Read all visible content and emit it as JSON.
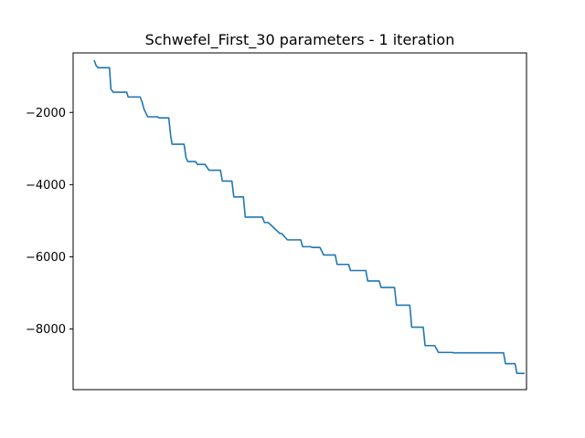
{
  "chart_data": {
    "type": "line",
    "title": "Schwefel_First_30 parameters - 1 iteration",
    "xlabel": "",
    "ylabel": "",
    "x_ticks_visible": false,
    "grid": false,
    "series_color": "#1f77b4",
    "ylim": [
      -9680,
      -350
    ],
    "yticks": [
      {
        "value": -2000,
        "label": "−2000"
      },
      {
        "value": -4000,
        "label": "−4000"
      },
      {
        "value": -6000,
        "label": "−6000"
      },
      {
        "value": -8000,
        "label": "−8000"
      }
    ],
    "xlim": [
      -2.2,
      45.2
    ],
    "series": [
      {
        "x": [
          0,
          0.2,
          0.4,
          1,
          1.6,
          1.75,
          2,
          3.4,
          3.55,
          4.8,
          5,
          5.2,
          5.6,
          6.6,
          6.8,
          7.8,
          8,
          8.15,
          9.4,
          9.6,
          9.8,
          10.6,
          10.8,
          11.6,
          12,
          13.2,
          13.4,
          14.4,
          14.6,
          15.6,
          15.8,
          17.6,
          17.8,
          18.2,
          19.4,
          19.6,
          20.2,
          21.6,
          21.8,
          22.6,
          22.8,
          23.6,
          24,
          25.2,
          25.4,
          26.6,
          26.8,
          27.2,
          27.6,
          28.4,
          28.6,
          29.8,
          30,
          31.4,
          31.6,
          33,
          33.2,
          34.4,
          34.6,
          35.6,
          36,
          37.4,
          37.6,
          38.6,
          38.8,
          42.8,
          43,
          44,
          44.2,
          45
        ],
        "y": [
          -550,
          -700,
          -760,
          -760,
          -760,
          -1350,
          -1440,
          -1440,
          -1570,
          -1570,
          -1700,
          -1900,
          -2120,
          -2120,
          -2150,
          -2150,
          -2650,
          -2880,
          -2880,
          -3250,
          -3360,
          -3360,
          -3440,
          -3440,
          -3600,
          -3600,
          -3900,
          -3900,
          -4340,
          -4340,
          -4900,
          -4900,
          -5050,
          -5050,
          -5350,
          -5350,
          -5530,
          -5530,
          -5720,
          -5720,
          -5740,
          -5740,
          -5950,
          -5950,
          -6210,
          -6210,
          -6380,
          -6380,
          -6380,
          -6380,
          -6670,
          -6670,
          -6850,
          -6850,
          -7340,
          -7340,
          -7950,
          -7950,
          -8460,
          -8460,
          -8650,
          -8650,
          -8660,
          -8660,
          -8660,
          -8660,
          -8960,
          -8960,
          -9230,
          -9230
        ]
      }
    ]
  }
}
